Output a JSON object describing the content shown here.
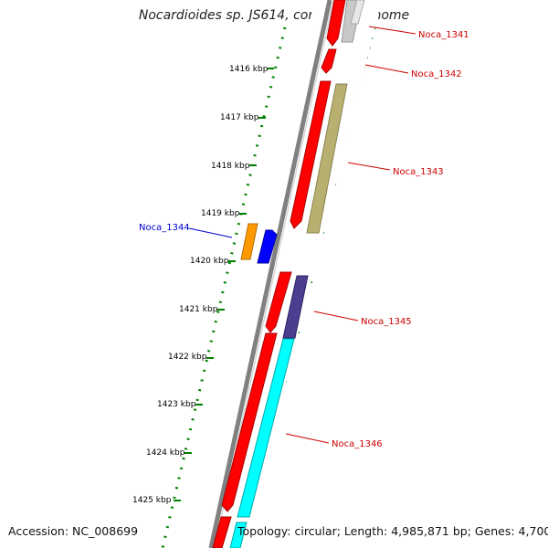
{
  "title": "Nocardioides sp. JS614, complete genome",
  "footer": {
    "accession": "Accession: NC_008699",
    "topology": "Topology: circular; Length: 4,985,871 bp; Genes: 4,700"
  },
  "kbp_labels": [
    "1416 kbp",
    "1417 kbp",
    "1418 kbp",
    "1419 kbp",
    "1420 kbp",
    "1421 kbp",
    "1422 kbp",
    "1423 kbp",
    "1424 kbp",
    "1425 kbp"
  ],
  "genes": {
    "g1341": "Noca_1341",
    "g1342": "Noca_1342",
    "g1343": "Noca_1343",
    "g1344": "Noca_1344",
    "g1345": "Noca_1345",
    "g1346": "Noca_1346"
  },
  "colors": {
    "backbone": "#808080",
    "forward_cds": "#ff0000",
    "tick_green": "#008000",
    "label_red": "#cc0000",
    "label_blue": "#0000cc",
    "gray_feature": "#c8c8c8",
    "olive_feature": "#b8b070",
    "orange_feature": "#ff9900",
    "blue_feature": "#0000ff",
    "purple_feature": "#4b3d8f",
    "cyan_feature": "#00ffff"
  }
}
